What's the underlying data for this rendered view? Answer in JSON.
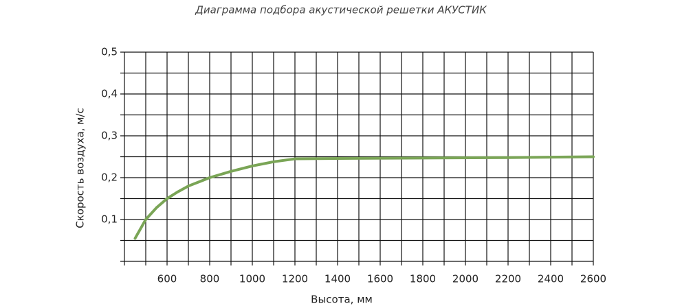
{
  "chart_data": {
    "type": "line",
    "title": "Диаграмма подбора акустической решетки АКУСТИК",
    "x_label": "Высота, мм",
    "y_label": "Скорость воздуха, м/с",
    "xlim": [
      400,
      2600
    ],
    "ylim": [
      0,
      0.5
    ],
    "xticks": [
      600,
      800,
      1000,
      1200,
      1400,
      1600,
      1800,
      2000,
      2200,
      2400,
      2600
    ],
    "yticks": [
      {
        "value": 0.1,
        "label": "0,1"
      },
      {
        "value": 0.2,
        "label": "0,2"
      },
      {
        "value": 0.3,
        "label": "0,3"
      },
      {
        "value": 0.4,
        "label": "0,4"
      },
      {
        "value": 0.5,
        "label": "0,5"
      }
    ],
    "grid_step": {
      "x": 100,
      "y": 0.05
    },
    "grid": true,
    "series": [
      {
        "color": "#7aa556",
        "x": [
          450,
          500,
          550,
          600,
          650,
          700,
          750,
          800,
          900,
          1000,
          1100,
          1200,
          1400,
          1800,
          2200,
          2600
        ],
        "values": [
          0.055,
          0.1,
          0.128,
          0.15,
          0.166,
          0.18,
          0.19,
          0.2,
          0.215,
          0.228,
          0.238,
          0.245,
          0.246,
          0.247,
          0.248,
          0.25
        ]
      }
    ]
  }
}
